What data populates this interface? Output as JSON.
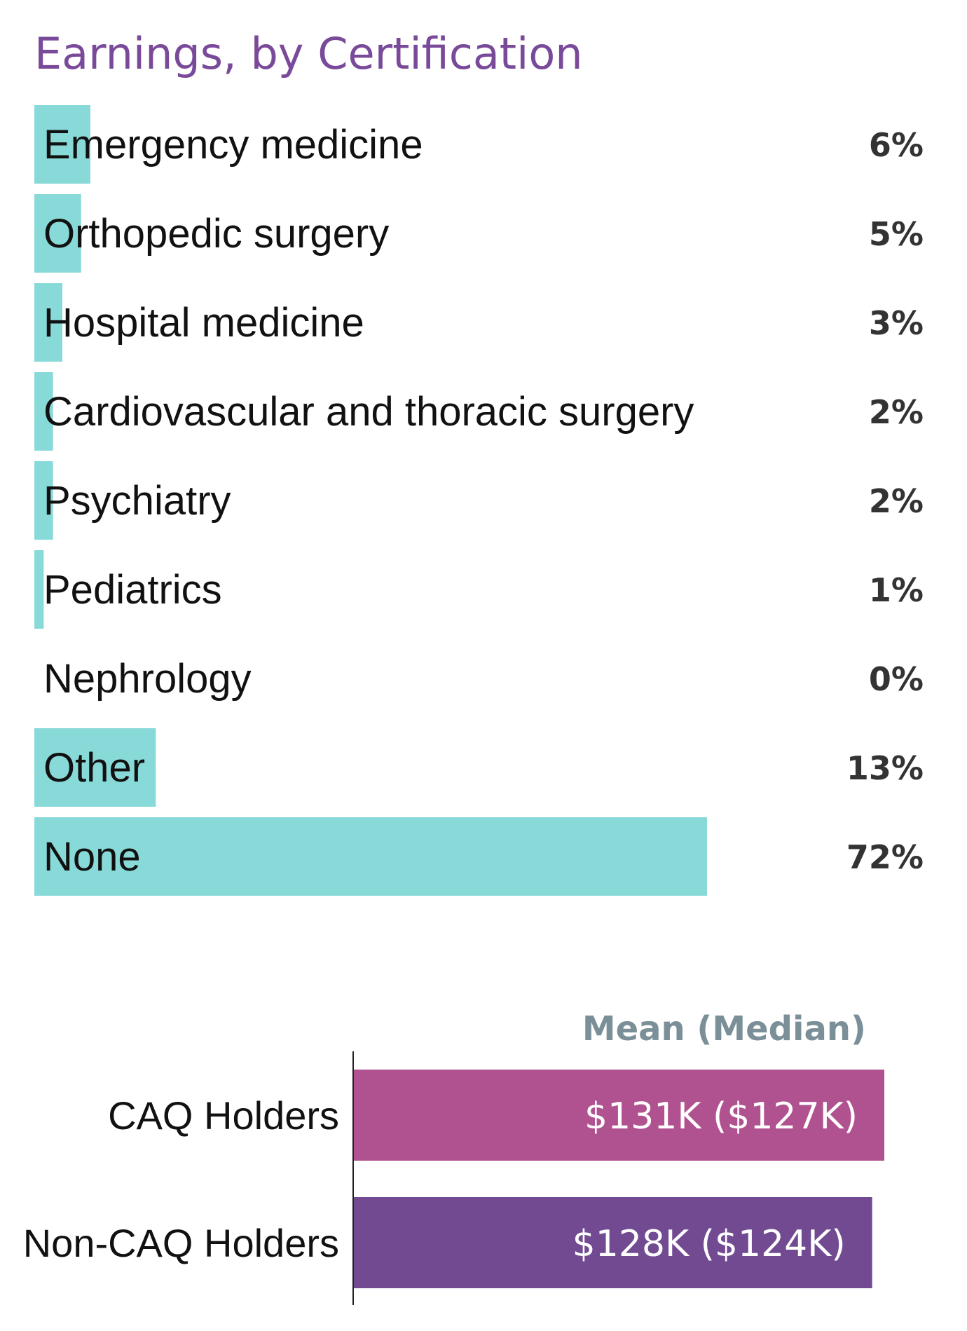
{
  "title": "Earnings, by Certification",
  "colors": {
    "title": "#7a4a9a",
    "bar": "#88dad9",
    "caq": "#b0528f",
    "non_caq": "#714a91",
    "header": "#7b8f98"
  },
  "chart_data": [
    {
      "type": "bar",
      "orientation": "horizontal",
      "title": "Earnings, by Certification",
      "unit": "%",
      "xlim": [
        0,
        72
      ],
      "categories": [
        "Emergency medicine",
        "Orthopedic surgery",
        "Hospital medicine",
        "Cardiovascular and thoracic surgery",
        "Psychiatry",
        "Pediatrics",
        "Nephrology",
        "Other",
        "None"
      ],
      "values": [
        6,
        5,
        3,
        2,
        2,
        1,
        0,
        13,
        72
      ],
      "value_labels": [
        "6%",
        "5%",
        "3%",
        "2%",
        "2%",
        "1%",
        "0%",
        "13%",
        "72%"
      ],
      "grid": false,
      "legend": "none"
    },
    {
      "type": "bar",
      "orientation": "horizontal",
      "column_header": "Mean (Median)",
      "categories": [
        "CAQ Holders",
        "Non-CAQ Holders"
      ],
      "series": [
        {
          "values": [
            131,
            128
          ]
        }
      ],
      "median": [
        127,
        124
      ],
      "unit": "$K",
      "value_labels": [
        "$131K ($127K)",
        "$128K ($124K)"
      ],
      "grid": false,
      "legend": "none"
    }
  ]
}
